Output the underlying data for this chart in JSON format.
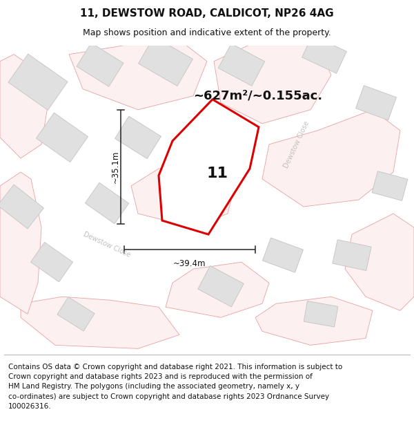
{
  "title": "11, DEWSTOW ROAD, CALDICOT, NP26 4AG",
  "subtitle": "Map shows position and indicative extent of the property.",
  "footer_lines": [
    "Contains OS data © Crown copyright and database right 2021. This information is subject to Crown copyright and database rights 2023 and is reproduced with the permission of",
    "HM Land Registry. The polygons (including the associated geometry, namely x, y co-ordinates) are subject to Crown copyright and database rights 2023 Ordnance Survey",
    "100026316."
  ],
  "area_label": "~627m²/~0.155ac.",
  "width_label": "~39.4m",
  "height_label": "~35.1m",
  "plot_number": "11",
  "map_bg": "#ffffff",
  "road_outline_color": "#e8a0a0",
  "road_fill_color": "#fdf0f0",
  "building_fill": "#e0e0e0",
  "building_outline": "#c8c8c8",
  "plot_line": "#dd0000",
  "plot_fill": "#ffffff",
  "dim_color": "#222222",
  "road_label_color": "#c0c0c0",
  "title_fontsize": 11,
  "subtitle_fontsize": 9,
  "area_fontsize": 13,
  "plot_label_fontsize": 16,
  "dim_fontsize": 8.5,
  "road_label_fontsize": 7,
  "footer_fontsize": 7.5
}
